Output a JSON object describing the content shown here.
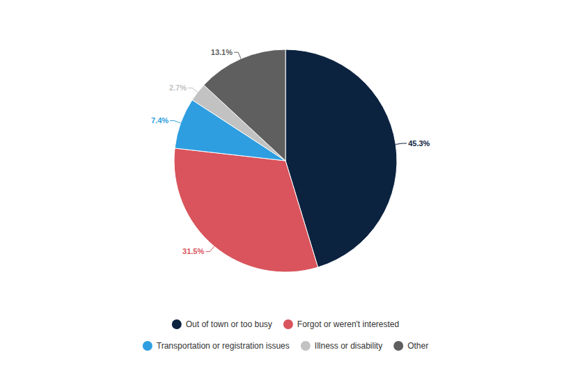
{
  "chart_data": {
    "type": "pie",
    "categories": [
      "Out of town or too busy",
      "Forgot or weren't interested",
      "Transportation or registration issues",
      "Illness or disability",
      "Other"
    ],
    "values": [
      45.3,
      31.5,
      7.4,
      2.7,
      13.1
    ],
    "value_labels": [
      "45.3%",
      "31.5%",
      "7.4%",
      "2.7%",
      "13.1%"
    ],
    "colors": [
      "#0c2340",
      "#d9545c",
      "#2e9ee0",
      "#c2c2c2",
      "#5f5f5f"
    ],
    "data_labels": true,
    "legend": "bottom"
  }
}
